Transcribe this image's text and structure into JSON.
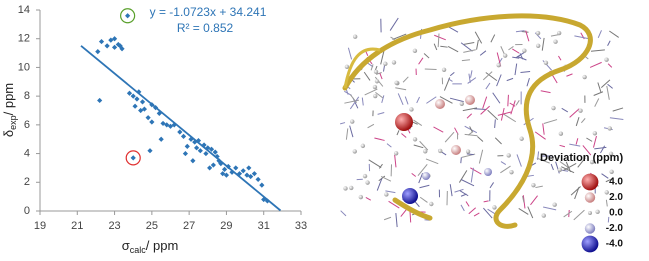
{
  "chart_data": {
    "type": "scatter",
    "xlabel": {
      "symbol": "σ",
      "sub": "calc",
      "unit": "/ ppm"
    },
    "ylabel": {
      "symbol": "δ",
      "sub": "exp",
      "unit": "/ ppm"
    },
    "equation": "y = -1.0723x + 34.241",
    "r_squared": "R² = 0.852",
    "color": "#2e75b6",
    "xlim": [
      19,
      33
    ],
    "xticks": [
      19,
      21,
      23,
      25,
      27,
      29,
      31,
      33
    ],
    "ylim": [
      0,
      14
    ],
    "yticks": [
      0,
      2,
      4,
      6,
      8,
      10,
      12,
      14
    ],
    "x": [
      22.3,
      22.6,
      22.8,
      23.0,
      23.2,
      23.4,
      22.1,
      23.0,
      23.3,
      22.2,
      23.7,
      24.0,
      23.8,
      24.0,
      24.2,
      24.3,
      24.5,
      24.1,
      24.4,
      24.6,
      24.8,
      25.0,
      25.2,
      25.4,
      25.0,
      25.6,
      25.8,
      26.0,
      26.2,
      26.5,
      26.7,
      26.9,
      27.1,
      27.3,
      27.5,
      27.4,
      27.6,
      27.8,
      27.9,
      28.0,
      28.2,
      28.4,
      28.5,
      28.6,
      28.3,
      28.1,
      28.7,
      28.9,
      29.1,
      29.3,
      29.5,
      29.7,
      29.9,
      30.1,
      30.3,
      30.5,
      30.7,
      29.0,
      28.8,
      27.2,
      26.8,
      31.0,
      31.2,
      30.9,
      30.2,
      24.9,
      25.5
    ],
    "y": [
      11.8,
      11.5,
      11.9,
      11.4,
      11.6,
      11.3,
      11.1,
      12.0,
      11.5,
      7.7,
      13.6,
      3.7,
      8.2,
      8.0,
      7.8,
      8.3,
      7.6,
      7.3,
      7.0,
      7.1,
      6.5,
      7.4,
      7.2,
      6.8,
      6.2,
      6.1,
      6.0,
      5.9,
      6.0,
      5.5,
      5.2,
      4.5,
      5.0,
      4.8,
      4.9,
      4.4,
      4.2,
      4.6,
      4.0,
      4.4,
      4.3,
      4.1,
      3.8,
      3.5,
      3.2,
      3.0,
      3.3,
      2.9,
      3.1,
      2.7,
      3.0,
      2.6,
      2.8,
      2.5,
      2.4,
      2.6,
      2.2,
      2.5,
      2.6,
      3.5,
      4.0,
      0.8,
      0.7,
      1.8,
      3.0,
      4.2,
      5.0
    ],
    "trendline": {
      "slope": -1.0723,
      "intercept": 34.241,
      "x": [
        21.2,
        31.9
      ]
    },
    "highlighted": [
      {
        "x": 23.7,
        "y": 13.6,
        "color": "#5aa02c"
      },
      {
        "x": 24.0,
        "y": 3.7,
        "color": "#e03030"
      }
    ]
  },
  "structure_legend": {
    "title": "Deviation (ppm)",
    "items": [
      {
        "value": 4,
        "label": "4.0"
      },
      {
        "value": 2,
        "label": "2.0"
      },
      {
        "value": 0,
        "label": "0.0"
      },
      {
        "value": -2,
        "label": "-2.0"
      },
      {
        "value": -4,
        "label": "-4.0"
      }
    ]
  }
}
